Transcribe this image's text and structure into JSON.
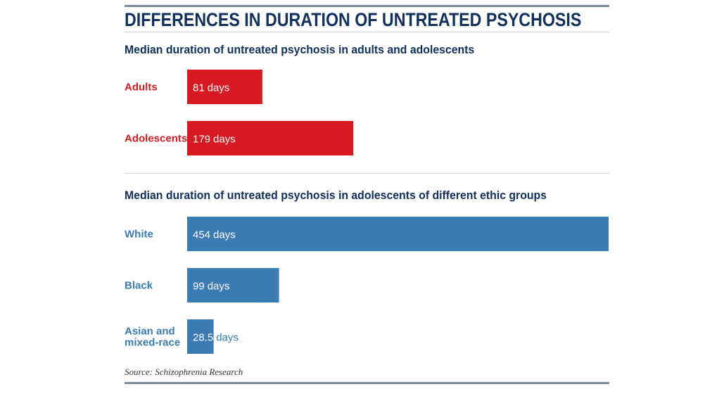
{
  "title": "DIFFERENCES IN DURATION OF UNTREATED PSYCHOSIS",
  "source": "Source: Schizophrenia Research",
  "unit_label": "days",
  "colors": {
    "title": "#132f5e",
    "age_panel": "#d71a21",
    "ethnic_panel": "#3a7cb3",
    "rule": "#7d8c9b"
  },
  "chart_data": [
    {
      "type": "bar",
      "orientation": "horizontal",
      "title": "Median duration of untreated psychosis in adults and adolescents",
      "categories": [
        "Adults",
        "Adolescents"
      ],
      "values": [
        81,
        179
      ],
      "value_labels": [
        "81",
        "179"
      ],
      "unit": "days",
      "color": "#d71a21",
      "xlim": [
        0,
        454
      ],
      "grid": false
    },
    {
      "type": "bar",
      "orientation": "horizontal",
      "title": "Median duration of untreated psychosis in adolescents of different ethic groups",
      "categories": [
        "White",
        "Black",
        "Asian and mixed-race"
      ],
      "category_lines": [
        [
          "White"
        ],
        [
          "Black"
        ],
        [
          "Asian and",
          "mixed-race"
        ]
      ],
      "values": [
        454,
        99,
        28.5
      ],
      "value_labels": [
        "454",
        "99",
        "28.5"
      ],
      "unit": "days",
      "color": "#3a7cb3",
      "xlim": [
        0,
        454
      ],
      "grid": false
    }
  ]
}
